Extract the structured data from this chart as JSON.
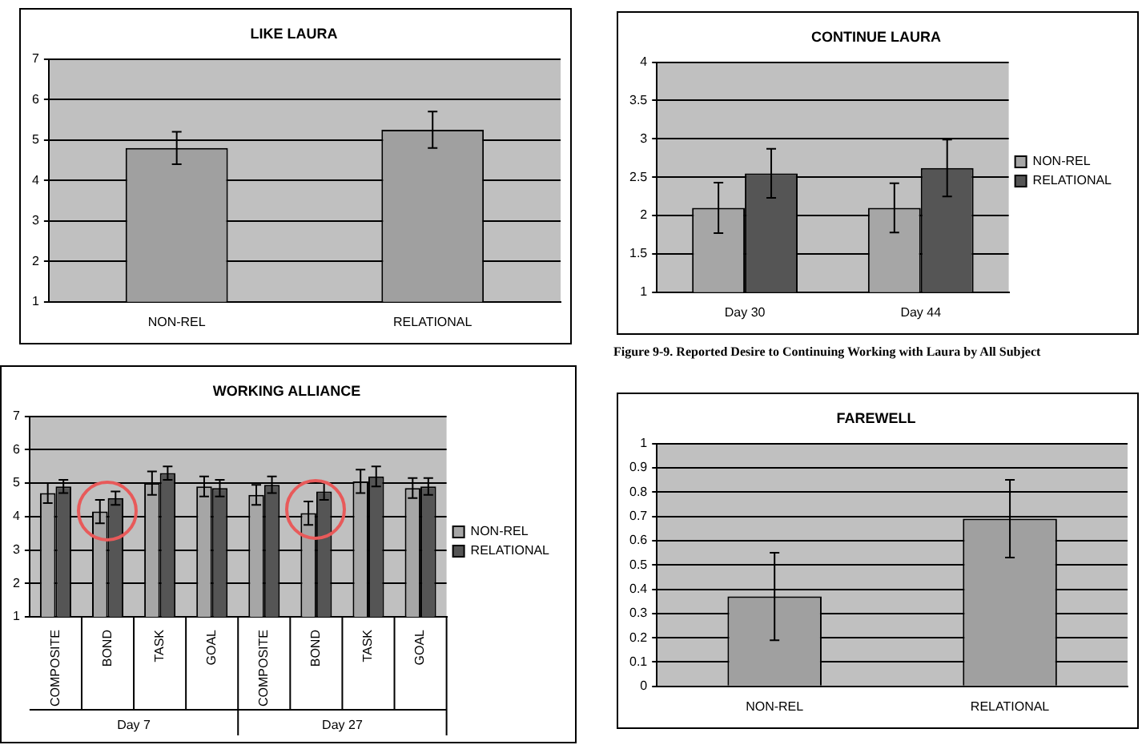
{
  "chart_data": [
    {
      "type": "bar",
      "title": "LIKE LAURA",
      "categories": [
        "NON-REL",
        "RELATIONAL"
      ],
      "values": [
        4.8,
        5.25
      ],
      "errors": [
        0.4,
        0.45
      ],
      "color": "#a0a0a0",
      "ylim": [
        1,
        7
      ],
      "yticks": [
        1,
        2,
        3,
        4,
        5,
        6,
        7
      ],
      "grid": "y"
    },
    {
      "type": "bar",
      "title": "CONTINUE LAURA",
      "categories": [
        "Day 30",
        "Day 44"
      ],
      "series": [
        {
          "name": "NON-REL",
          "color": "#a6a6a6",
          "values": [
            2.1,
            2.1
          ],
          "errors": [
            0.33,
            0.32
          ]
        },
        {
          "name": "RELATIONAL",
          "color": "#555555",
          "values": [
            2.55,
            2.62
          ],
          "errors": [
            0.32,
            0.37
          ]
        }
      ],
      "ylim": [
        1,
        4
      ],
      "yticks": [
        1,
        1.5,
        2,
        2.5,
        3,
        3.5,
        4
      ],
      "grid": "y",
      "legend": "right",
      "annotations": [
        "Figure 9-9. Reported Desire to Continuing Working with Laura by All Subject"
      ]
    },
    {
      "type": "bar",
      "title": "WORKING ALLIANCE",
      "categories": [
        "COMPOSITE",
        "BOND",
        "TASK",
        "GOAL",
        "COMPOSITE",
        "BOND",
        "TASK",
        "GOAL"
      ],
      "series": [
        {
          "name": "NON-REL",
          "color": "#a6a6a6",
          "values": [
            4.7,
            4.15,
            5.0,
            4.9,
            4.65,
            4.1,
            5.05,
            4.85
          ],
          "errors": [
            0.3,
            0.35,
            0.35,
            0.3,
            0.3,
            0.35,
            0.35,
            0.3
          ]
        },
        {
          "name": "RELATIONAL",
          "color": "#555555",
          "values": [
            4.9,
            4.55,
            5.3,
            4.85,
            4.95,
            4.75,
            5.2,
            4.9
          ],
          "errors": [
            0.2,
            0.2,
            0.2,
            0.25,
            0.25,
            0.25,
            0.3,
            0.25
          ]
        }
      ],
      "ylim": [
        1,
        7
      ],
      "yticks": [
        1,
        2,
        3,
        4,
        5,
        6,
        7
      ],
      "grid": "y",
      "legend": "right",
      "annotations": [
        "Day 7",
        "Day 27"
      ]
    },
    {
      "type": "bar",
      "title": "FAREWELL",
      "categories": [
        "NON-REL",
        "RELATIONAL"
      ],
      "values": [
        0.37,
        0.69
      ],
      "errors": [
        0.18,
        0.16
      ],
      "color": "#a0a0a0",
      "ylim": [
        0,
        1
      ],
      "yticks": [
        0,
        0.1,
        0.2,
        0.3,
        0.4,
        0.5,
        0.6,
        0.7,
        0.8,
        0.9,
        1
      ],
      "grid": "y"
    }
  ]
}
